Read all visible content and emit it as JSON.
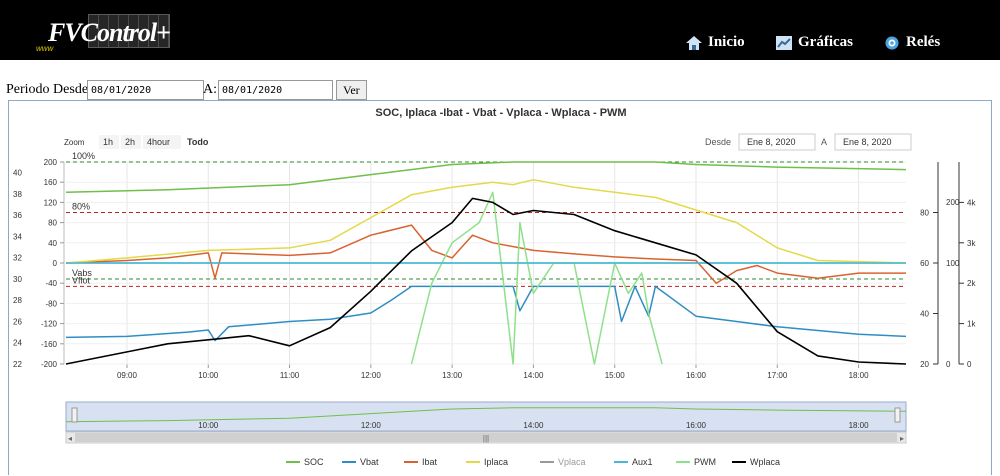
{
  "header": {
    "logo_text": "FVControl+",
    "logo_small": "www",
    "nav": [
      {
        "label": "Inicio",
        "icon": "home-icon"
      },
      {
        "label": "Gráficas",
        "icon": "chart-icon"
      },
      {
        "label": "Relés",
        "icon": "relay-icon"
      }
    ]
  },
  "filter": {
    "desde_label": "Periodo Desde:",
    "desde_value": "08/01/2020",
    "a_label": "A:",
    "a_value": "08/01/2020",
    "ver_label": "Ver"
  },
  "colors": {
    "SOC": "#6fbf4a",
    "Vbat": "#2e8ec4",
    "Ibat": "#d9632f",
    "Iplaca": "#e3d94a",
    "Vplaca": "#999999",
    "Aux1": "#49b8d6",
    "PWM": "#8fe08a",
    "Wplaca": "#000000",
    "accent_red": "#c02020",
    "accent_green": "#2e8b2e",
    "cyan_line": "#3bbfd0",
    "navigator": "#b8c8e6"
  },
  "chart_data": {
    "type": "line",
    "title": "SOC, Iplaca -Ibat - Vbat - Vplaca - Wplaca - PWM",
    "zoom_label": "Zoom",
    "zoom_buttons": [
      "1h",
      "2h",
      "4hour",
      "Todo"
    ],
    "zoom_selected": "Todo",
    "range_desde_label": "Desde",
    "range_desde": "Ene 8, 2020",
    "range_a_label": "A",
    "range_a": "Ene 8, 2020",
    "x_ticks": [
      "09:00",
      "10:00",
      "11:00",
      "12:00",
      "13:00",
      "14:00",
      "15:00",
      "16:00",
      "17:00",
      "18:00"
    ],
    "navigator_ticks": [
      "10:00",
      "12:00",
      "14:00",
      "16:00",
      "18:00"
    ],
    "xlim": [
      "08:15",
      "18:35"
    ],
    "y_axes": {
      "vbat": {
        "ticks": [
          "40",
          "38",
          "36",
          "34",
          "32",
          "30",
          "28",
          "26",
          "24",
          "22"
        ],
        "ylim": [
          22,
          41
        ]
      },
      "ibat": {
        "ticks": [
          "200",
          "160",
          "120",
          "80",
          "40",
          "0",
          "-40",
          "-80",
          "-120",
          "-160",
          "-200"
        ],
        "ylim": [
          -200,
          200
        ]
      },
      "soc": {
        "ticks": [
          "80",
          "60",
          "40",
          "20"
        ],
        "ylim": [
          20,
          100
        ]
      },
      "vplaca": {
        "ticks": [
          "200",
          "100",
          "0"
        ]
      },
      "wplaca": {
        "ticks": [
          "4k",
          "3k",
          "2k",
          "1k",
          "0"
        ],
        "ylim": [
          0,
          5000
        ]
      }
    },
    "reference_lines": [
      {
        "label": "100%",
        "value_soc": 100
      },
      {
        "label": "80%",
        "value_soc": 80
      },
      {
        "label": "Vabs",
        "value_vbat": 30
      },
      {
        "label": "Vflot",
        "value_vbat": 29.3
      }
    ],
    "legend": [
      "SOC",
      "Vbat",
      "Ibat",
      "Iplaca",
      "Vplaca",
      "Aux1",
      "PWM",
      "Wplaca"
    ],
    "series": [
      {
        "name": "SOC",
        "unit": "%",
        "points": [
          [
            "08:15",
            88
          ],
          [
            "09:30",
            89
          ],
          [
            "11:00",
            91
          ],
          [
            "12:00",
            95
          ],
          [
            "13:00",
            99
          ],
          [
            "13:45",
            100
          ],
          [
            "15:30",
            100
          ],
          [
            "16:00",
            99
          ],
          [
            "17:00",
            98
          ],
          [
            "18:35",
            97
          ]
        ]
      },
      {
        "name": "Vbat",
        "unit": "V",
        "points": [
          [
            "08:15",
            24.5
          ],
          [
            "09:00",
            24.6
          ],
          [
            "09:45",
            25.0
          ],
          [
            "10:00",
            25.2
          ],
          [
            "10:05",
            24.2
          ],
          [
            "10:15",
            25.5
          ],
          [
            "11:00",
            26.0
          ],
          [
            "11:30",
            26.2
          ],
          [
            "12:00",
            26.8
          ],
          [
            "12:15",
            28.0
          ],
          [
            "12:30",
            29.3
          ],
          [
            "13:00",
            29.3
          ],
          [
            "13:45",
            29.3
          ],
          [
            "13:50",
            27.0
          ],
          [
            "14:00",
            29.3
          ],
          [
            "15:00",
            29.3
          ],
          [
            "15:05",
            26.0
          ],
          [
            "15:15",
            29.3
          ],
          [
            "15:25",
            26.5
          ],
          [
            "15:30",
            29.3
          ],
          [
            "16:00",
            26.5
          ],
          [
            "16:30",
            26.0
          ],
          [
            "17:00",
            25.5
          ],
          [
            "18:00",
            24.8
          ],
          [
            "18:35",
            24.6
          ]
        ]
      },
      {
        "name": "Ibat",
        "unit": "A",
        "points": [
          [
            "08:15",
            0
          ],
          [
            "09:00",
            5
          ],
          [
            "09:30",
            10
          ],
          [
            "10:00",
            20
          ],
          [
            "10:05",
            -30
          ],
          [
            "10:10",
            20
          ],
          [
            "11:00",
            15
          ],
          [
            "11:30",
            20
          ],
          [
            "12:00",
            55
          ],
          [
            "12:30",
            75
          ],
          [
            "12:45",
            25
          ],
          [
            "13:00",
            10
          ],
          [
            "13:15",
            55
          ],
          [
            "13:30",
            40
          ],
          [
            "14:00",
            25
          ],
          [
            "14:30",
            18
          ],
          [
            "15:00",
            12
          ],
          [
            "15:30",
            8
          ],
          [
            "16:00",
            5
          ],
          [
            "16:15",
            -40
          ],
          [
            "16:30",
            -15
          ],
          [
            "16:45",
            -5
          ],
          [
            "17:00",
            -20
          ],
          [
            "17:30",
            -30
          ],
          [
            "18:00",
            -20
          ],
          [
            "18:35",
            -20
          ]
        ]
      },
      {
        "name": "Iplaca",
        "unit": "A",
        "points": [
          [
            "08:15",
            0
          ],
          [
            "09:00",
            10
          ],
          [
            "10:00",
            25
          ],
          [
            "11:00",
            30
          ],
          [
            "11:30",
            45
          ],
          [
            "12:00",
            90
          ],
          [
            "12:30",
            135
          ],
          [
            "13:00",
            150
          ],
          [
            "13:30",
            160
          ],
          [
            "13:45",
            155
          ],
          [
            "14:00",
            165
          ],
          [
            "14:30",
            150
          ],
          [
            "15:00",
            140
          ],
          [
            "15:30",
            130
          ],
          [
            "16:00",
            105
          ],
          [
            "16:30",
            80
          ],
          [
            "17:00",
            30
          ],
          [
            "17:30",
            5
          ],
          [
            "18:35",
            0
          ]
        ]
      },
      {
        "name": "PWM",
        "unit": "%",
        "points": [
          [
            "12:30",
            0
          ],
          [
            "12:45",
            40
          ],
          [
            "13:00",
            60
          ],
          [
            "13:20",
            70
          ],
          [
            "13:30",
            85
          ],
          [
            "13:45",
            0
          ],
          [
            "13:50",
            70
          ],
          [
            "14:00",
            35
          ],
          [
            "14:15",
            50
          ],
          [
            "14:30",
            50
          ],
          [
            "14:45",
            0
          ],
          [
            "15:00",
            50
          ],
          [
            "15:10",
            35
          ],
          [
            "15:20",
            45
          ],
          [
            "15:25",
            25
          ],
          [
            "15:35",
            0
          ]
        ]
      },
      {
        "name": "Aux1",
        "unit": "",
        "points": [
          [
            "08:15",
            0
          ],
          [
            "18:35",
            0
          ]
        ]
      },
      {
        "name": "Wplaca",
        "unit": "W",
        "points": [
          [
            "08:15",
            0
          ],
          [
            "09:00",
            300
          ],
          [
            "09:30",
            500
          ],
          [
            "10:00",
            600
          ],
          [
            "10:30",
            700
          ],
          [
            "11:00",
            450
          ],
          [
            "11:30",
            900
          ],
          [
            "12:00",
            1800
          ],
          [
            "12:30",
            2800
          ],
          [
            "13:00",
            3500
          ],
          [
            "13:15",
            4100
          ],
          [
            "13:30",
            4000
          ],
          [
            "13:45",
            3700
          ],
          [
            "14:00",
            3800
          ],
          [
            "14:30",
            3700
          ],
          [
            "15:00",
            3300
          ],
          [
            "15:30",
            3000
          ],
          [
            "16:00",
            2700
          ],
          [
            "16:30",
            2000
          ],
          [
            "17:00",
            800
          ],
          [
            "17:30",
            200
          ],
          [
            "18:00",
            50
          ],
          [
            "18:35",
            0
          ]
        ]
      }
    ]
  }
}
